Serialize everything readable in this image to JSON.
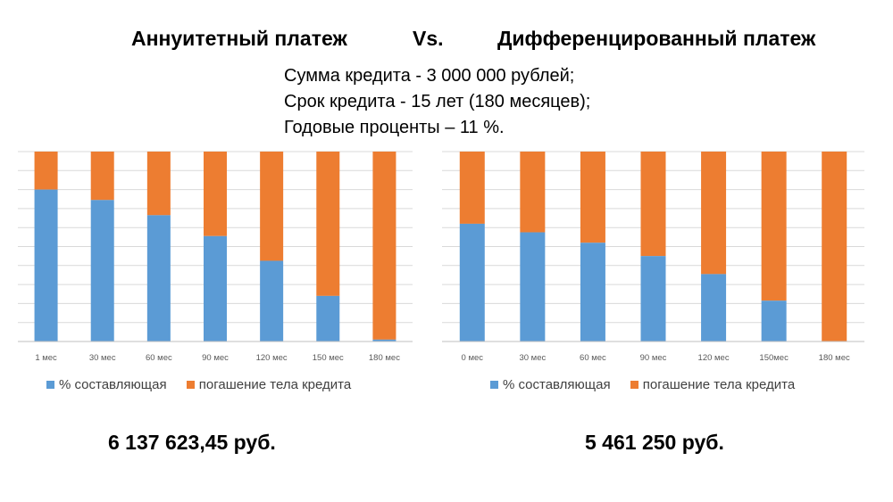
{
  "header": {
    "left": "Аннуитетный платеж",
    "vs": "Vs.",
    "right": "Дифференцированный платеж"
  },
  "params": [
    "Сумма кредита - 3 000 000 рублей;",
    "Срок кредита - 15 лет (180 месяцев);",
    "Годовые проценты – 11 %."
  ],
  "colors": {
    "interest": "#5b9bd5",
    "principal": "#ed7d31",
    "grid": "#d9d9d9"
  },
  "chart_data": [
    {
      "type": "bar",
      "stacked": "100%",
      "grid": true,
      "legend_position": "bottom",
      "categories": [
        "1 мес",
        "30 мес",
        "60 мес",
        "90 мес",
        "120 мес",
        "150 мес",
        "180 мес"
      ],
      "series": [
        {
          "name": "% составляющая",
          "values": [
            0.8,
            0.745,
            0.665,
            0.555,
            0.425,
            0.24,
            0.01
          ]
        },
        {
          "name": "погашение  тела кредита",
          "values": [
            0.2,
            0.255,
            0.335,
            0.445,
            0.575,
            0.76,
            0.99
          ]
        }
      ],
      "ylim": [
        0,
        1
      ],
      "total": "6 137 623,45 руб."
    },
    {
      "type": "bar",
      "stacked": "100%",
      "grid": true,
      "legend_position": "bottom",
      "categories": [
        "0 мес",
        "30 мес",
        "60 мес",
        "90 мес",
        "120 мес",
        "150мес",
        "180 мес"
      ],
      "series": [
        {
          "name": "% составляющая",
          "values": [
            0.62,
            0.575,
            0.52,
            0.45,
            0.355,
            0.215,
            0.0
          ]
        },
        {
          "name": "погашение тела кредита",
          "values": [
            0.38,
            0.425,
            0.48,
            0.55,
            0.645,
            0.785,
            1.0
          ]
        }
      ],
      "ylim": [
        0,
        1
      ],
      "total": "5 461 250 руб."
    }
  ]
}
